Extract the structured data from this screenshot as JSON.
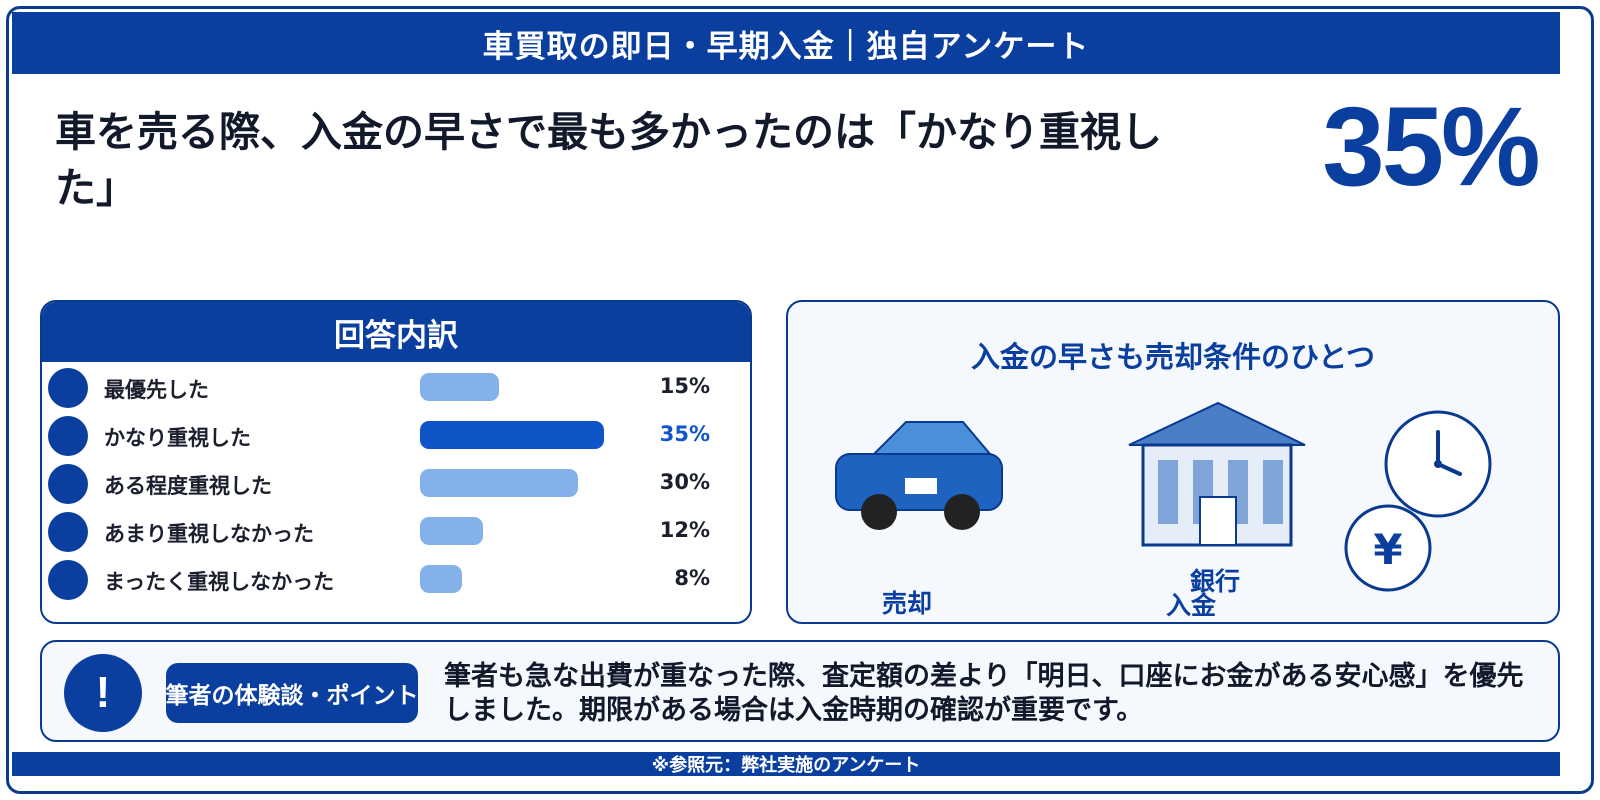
{
  "header": {
    "title": "車買取の即日・早期入金｜独自アンケート"
  },
  "headline": "車を売る際、入金の早さで最も多かったのは「かなり重視した」",
  "big_stat": "35%",
  "breakdown": {
    "title": "回答内訳"
  },
  "chart_data": {
    "type": "bar",
    "orientation": "horizontal",
    "title": "回答内訳",
    "categories": [
      "最優先した",
      "かなり重視した",
      "ある程度重視した",
      "あまり重視しなかった",
      "まったく重視しなかった"
    ],
    "values": [
      15,
      35,
      30,
      12,
      8
    ],
    "value_labels": [
      "15%",
      "35%",
      "30%",
      "12%",
      "8%"
    ],
    "highlight_index": 1,
    "xlim": [
      0,
      40
    ],
    "grid": false,
    "colors": {
      "bar": "#84b1ea",
      "highlight": "#0f55c8"
    }
  },
  "illustration": {
    "title": "入金の早さも売却条件のひとつ",
    "caption_sell": "売却",
    "caption_bank_top": "銀行",
    "caption_bank_bottom": "入金",
    "yen_symbol": "¥",
    "icons": [
      "car-icon",
      "bank-icon",
      "clock-icon",
      "yen-coin-icon"
    ]
  },
  "note": {
    "icon": "!",
    "badge": "筆者の体験談・ポイント",
    "text": "筆者も急な出費が重なった際、査定額の差より「明日、口座にお金がある安心感」を優先しました。期限がある場合は入金時期の確認が重要です。"
  },
  "footer": {
    "source": "※参照元：弊社実施のアンケート"
  },
  "colors": {
    "primary": "#0a3fa0",
    "accent": "#0f55c8",
    "light_bar": "#84b1ea"
  }
}
